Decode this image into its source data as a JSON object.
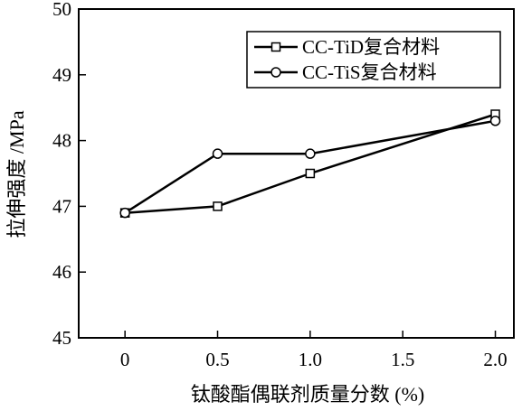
{
  "chart_data": {
    "type": "line",
    "xlabel": "钛酸酯偶联剂质量分数 (%)",
    "ylabel": "拉伸强度 /MPa",
    "xlim": [
      -0.25,
      2.1
    ],
    "ylim": [
      45,
      50
    ],
    "x_ticks": [
      0,
      0.5,
      1.0,
      1.5,
      2.0
    ],
    "x_tick_labels": [
      "0",
      "0.5",
      "1.0",
      "1.5",
      "2.0"
    ],
    "y_ticks": [
      45,
      46,
      47,
      48,
      49,
      50
    ],
    "y_tick_labels": [
      "45",
      "46",
      "47",
      "48",
      "49",
      "50"
    ],
    "grid": false,
    "legend_position": "top-right",
    "series": [
      {
        "name": "CC-TiD复合材料",
        "marker": "square",
        "color": "#000000",
        "x": [
          0,
          0.5,
          1.0,
          2.0
        ],
        "y": [
          46.9,
          47.0,
          47.5,
          48.4
        ]
      },
      {
        "name": "CC-TiS复合材料",
        "marker": "circle",
        "color": "#000000",
        "x": [
          0,
          0.5,
          1.0,
          2.0
        ],
        "y": [
          46.9,
          47.8,
          47.8,
          48.3
        ]
      }
    ]
  }
}
